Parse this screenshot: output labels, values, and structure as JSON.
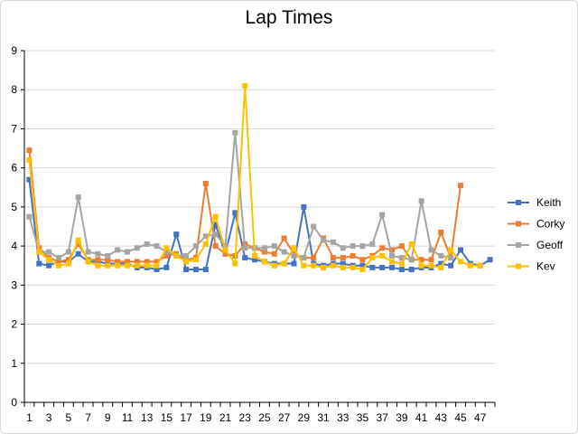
{
  "chart_data": {
    "type": "line",
    "title": "Lap Times",
    "xlabel": "",
    "ylabel": "",
    "ylim": [
      0,
      9
    ],
    "yticks": [
      0,
      1,
      2,
      3,
      4,
      5,
      6,
      7,
      8,
      9
    ],
    "x": [
      1,
      2,
      3,
      4,
      5,
      6,
      7,
      8,
      9,
      10,
      11,
      12,
      13,
      14,
      15,
      16,
      17,
      18,
      19,
      20,
      21,
      22,
      23,
      24,
      25,
      26,
      27,
      28,
      29,
      30,
      31,
      32,
      33,
      34,
      35,
      36,
      37,
      38,
      39,
      40,
      41,
      42,
      43,
      44,
      45,
      46,
      47,
      48
    ],
    "xtick_labels": [
      1,
      3,
      5,
      7,
      9,
      11,
      13,
      15,
      17,
      19,
      21,
      23,
      25,
      27,
      29,
      31,
      33,
      35,
      37,
      39,
      41,
      43,
      45,
      47
    ],
    "grid": "horizontal",
    "legend_position": "right",
    "series": [
      {
        "name": "Keith",
        "color": "#4472c4",
        "values": [
          5.7,
          3.55,
          3.5,
          3.6,
          3.6,
          3.8,
          3.6,
          3.6,
          3.55,
          3.55,
          3.55,
          3.45,
          3.45,
          3.4,
          3.45,
          4.3,
          3.4,
          3.4,
          3.4,
          4.55,
          3.8,
          4.85,
          3.7,
          3.65,
          3.6,
          3.55,
          3.55,
          3.55,
          5.0,
          3.55,
          3.5,
          3.55,
          3.55,
          3.5,
          3.5,
          3.45,
          3.45,
          3.45,
          3.4,
          3.4,
          3.45,
          3.45,
          3.55,
          3.5,
          3.9,
          3.55,
          3.5,
          3.65
        ]
      },
      {
        "name": "Corky",
        "color": "#ed7d31",
        "values": [
          6.45,
          3.95,
          3.7,
          3.6,
          3.65,
          4.05,
          3.65,
          3.65,
          3.65,
          3.6,
          3.6,
          3.6,
          3.6,
          3.6,
          3.75,
          3.8,
          3.65,
          3.7,
          5.6,
          4.0,
          3.8,
          3.75,
          4.05,
          3.95,
          3.85,
          3.8,
          4.2,
          3.8,
          3.7,
          3.7,
          4.2,
          3.7,
          3.7,
          3.75,
          3.65,
          3.75,
          3.95,
          3.9,
          4.0,
          3.65,
          3.65,
          3.65,
          4.35,
          3.7,
          5.55,
          null,
          null,
          null
        ]
      },
      {
        "name": "Geoff",
        "color": "#a5a5a5",
        "values": [
          4.75,
          3.85,
          3.85,
          3.7,
          3.85,
          5.25,
          3.85,
          3.8,
          3.75,
          3.9,
          3.85,
          3.95,
          4.05,
          4.0,
          3.85,
          3.75,
          3.75,
          4.0,
          4.25,
          4.3,
          4.0,
          6.9,
          3.95,
          3.95,
          3.95,
          4.0,
          3.85,
          3.75,
          3.7,
          4.5,
          4.15,
          4.1,
          3.95,
          4.0,
          4.0,
          4.05,
          4.8,
          3.75,
          3.7,
          3.65,
          5.15,
          3.9,
          3.75,
          3.7,
          null,
          null,
          null,
          null
        ]
      },
      {
        "name": "Kev",
        "color": "#ffc000",
        "values": [
          6.2,
          3.85,
          3.65,
          3.5,
          3.55,
          4.15,
          3.6,
          3.5,
          3.5,
          3.5,
          3.5,
          3.5,
          3.5,
          3.5,
          3.95,
          3.75,
          3.6,
          3.65,
          4.05,
          4.75,
          3.9,
          3.55,
          8.1,
          3.75,
          3.6,
          3.5,
          3.55,
          3.95,
          3.5,
          3.5,
          3.45,
          3.5,
          3.45,
          3.45,
          3.4,
          3.7,
          3.75,
          3.6,
          3.55,
          4.05,
          3.5,
          3.5,
          3.45,
          3.9,
          3.6,
          3.5,
          3.5,
          null
        ]
      }
    ]
  }
}
